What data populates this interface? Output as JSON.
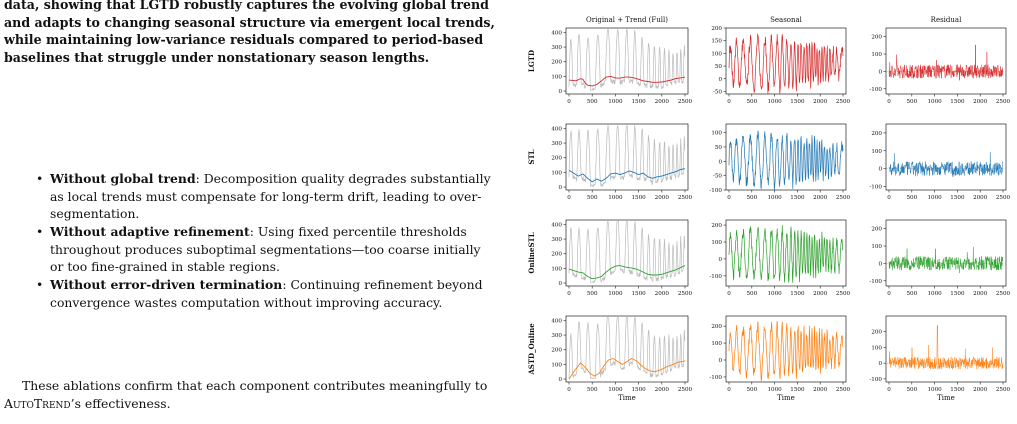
{
  "paper": {
    "caption": "data, showing that LGTD robustly captures the evolving global trend and adapts to changing seasonal structure via emergent local trends, while maintaining low-variance residuals compared to period-based baselines that struggle under nonstationary season lengths.",
    "bullets": [
      {
        "title": "Without global trend",
        "text": ": Decomposition quality degrades substantially as local trends must compensate for long-term drift, leading to over-segmentation."
      },
      {
        "title": "Without adaptive refinement",
        "text": ": Using fixed percentile thresholds throughout produces suboptimal segmentations—too coarse initially or too fine-grained in stable regions."
      },
      {
        "title": "Without error-driven termination",
        "text": ": Continuing refinement beyond convergence wastes computation without improving accuracy."
      }
    ],
    "conclusion_before": "These ablations confirm that each component contributes meaningfully to ",
    "conclusion_name": "AutoTrend",
    "conclusion_after": "’s effectiveness."
  },
  "chart_data": {
    "type": "line",
    "column_titles": [
      "Original + Trend (Full)",
      "Seasonal",
      "Residual"
    ],
    "row_labels": [
      "LGTD",
      "STL",
      "OnlineSTL",
      "ASTD_Online"
    ],
    "xlabel": "Time",
    "x_ticks": [
      0,
      500,
      1000,
      1500,
      2000,
      2500
    ],
    "xlim": [
      0,
      2500
    ],
    "original_color": "#bbbbbb",
    "methods": [
      {
        "name": "LGTD",
        "color": "#d62728",
        "trend": [
          [
            0,
            75
          ],
          [
            150,
            70
          ],
          [
            250,
            85
          ],
          [
            300,
            80
          ],
          [
            350,
            55
          ],
          [
            400,
            40
          ],
          [
            500,
            35
          ],
          [
            600,
            45
          ],
          [
            700,
            70
          ],
          [
            800,
            95
          ],
          [
            900,
            100
          ],
          [
            1000,
            90
          ],
          [
            1100,
            88
          ],
          [
            1200,
            95
          ],
          [
            1300,
            95
          ],
          [
            1400,
            90
          ],
          [
            1500,
            80
          ],
          [
            1600,
            70
          ],
          [
            1700,
            65
          ],
          [
            1800,
            60
          ],
          [
            1900,
            60
          ],
          [
            2000,
            62
          ],
          [
            2100,
            68
          ],
          [
            2200,
            75
          ],
          [
            2300,
            85
          ],
          [
            2400,
            90
          ],
          [
            2500,
            95
          ]
        ],
        "seasonal_ylim": [
          -60,
          200
        ],
        "seasonal_ticks": [
          -50,
          0,
          50,
          100,
          150,
          200
        ],
        "residual_ylim": [
          -130,
          250
        ],
        "residual_ticks": [
          -100,
          0,
          100,
          200
        ]
      },
      {
        "name": "STL",
        "color": "#1f77b4",
        "trend": [
          [
            0,
            115
          ],
          [
            100,
            95
          ],
          [
            200,
            75
          ],
          [
            300,
            90
          ],
          [
            400,
            60
          ],
          [
            500,
            35
          ],
          [
            600,
            55
          ],
          [
            700,
            40
          ],
          [
            800,
            60
          ],
          [
            900,
            90
          ],
          [
            1000,
            95
          ],
          [
            1100,
            85
          ],
          [
            1200,
            95
          ],
          [
            1300,
            110
          ],
          [
            1400,
            100
          ],
          [
            1500,
            85
          ],
          [
            1600,
            95
          ],
          [
            1700,
            70
          ],
          [
            1800,
            60
          ],
          [
            1900,
            70
          ],
          [
            2000,
            75
          ],
          [
            2100,
            85
          ],
          [
            2200,
            95
          ],
          [
            2300,
            105
          ],
          [
            2400,
            120
          ],
          [
            2500,
            125
          ]
        ],
        "seasonal_ylim": [
          -100,
          130
        ],
        "seasonal_ticks": [
          -100,
          -50,
          0,
          50,
          100
        ],
        "residual_ylim": [
          -120,
          250
        ],
        "residual_ticks": [
          -100,
          0,
          100,
          200
        ]
      },
      {
        "name": "OnlineSTL",
        "color": "#2ca02c",
        "trend": [
          [
            0,
            95
          ],
          [
            100,
            85
          ],
          [
            200,
            75
          ],
          [
            300,
            70
          ],
          [
            400,
            45
          ],
          [
            500,
            30
          ],
          [
            600,
            35
          ],
          [
            700,
            45
          ],
          [
            800,
            75
          ],
          [
            900,
            100
          ],
          [
            1000,
            115
          ],
          [
            1100,
            120
          ],
          [
            1200,
            110
          ],
          [
            1300,
            105
          ],
          [
            1400,
            100
          ],
          [
            1500,
            90
          ],
          [
            1600,
            75
          ],
          [
            1700,
            60
          ],
          [
            1800,
            55
          ],
          [
            1900,
            55
          ],
          [
            2000,
            60
          ],
          [
            2100,
            70
          ],
          [
            2200,
            80
          ],
          [
            2300,
            90
          ],
          [
            2400,
            105
          ],
          [
            2500,
            120
          ]
        ],
        "seasonal_ylim": [
          -160,
          230
        ],
        "seasonal_ticks": [
          -100,
          0,
          100,
          200
        ],
        "residual_ylim": [
          -130,
          250
        ],
        "residual_ticks": [
          -100,
          0,
          100,
          200
        ]
      },
      {
        "name": "ASTD_Online",
        "color": "#ff7f0e",
        "trend": [
          [
            0,
            0
          ],
          [
            80,
            40
          ],
          [
            150,
            70
          ],
          [
            250,
            110
          ],
          [
            350,
            80
          ],
          [
            450,
            40
          ],
          [
            550,
            20
          ],
          [
            650,
            40
          ],
          [
            750,
            90
          ],
          [
            850,
            130
          ],
          [
            950,
            140
          ],
          [
            1050,
            120
          ],
          [
            1150,
            100
          ],
          [
            1250,
            120
          ],
          [
            1350,
            140
          ],
          [
            1450,
            125
          ],
          [
            1550,
            95
          ],
          [
            1650,
            70
          ],
          [
            1750,
            55
          ],
          [
            1850,
            50
          ],
          [
            1950,
            60
          ],
          [
            2050,
            75
          ],
          [
            2150,
            90
          ],
          [
            2250,
            100
          ],
          [
            2350,
            115
          ],
          [
            2450,
            120
          ],
          [
            2500,
            125
          ]
        ],
        "seasonal_ylim": [
          -130,
          260
        ],
        "seasonal_ticks": [
          -100,
          0,
          100,
          200
        ],
        "residual_ylim": [
          -120,
          300
        ],
        "residual_ticks": [
          -100,
          0,
          100,
          200
        ]
      }
    ],
    "original_ylim": [
      -20,
      430
    ],
    "original_ticks": [
      0,
      100,
      200,
      300,
      400
    ]
  }
}
